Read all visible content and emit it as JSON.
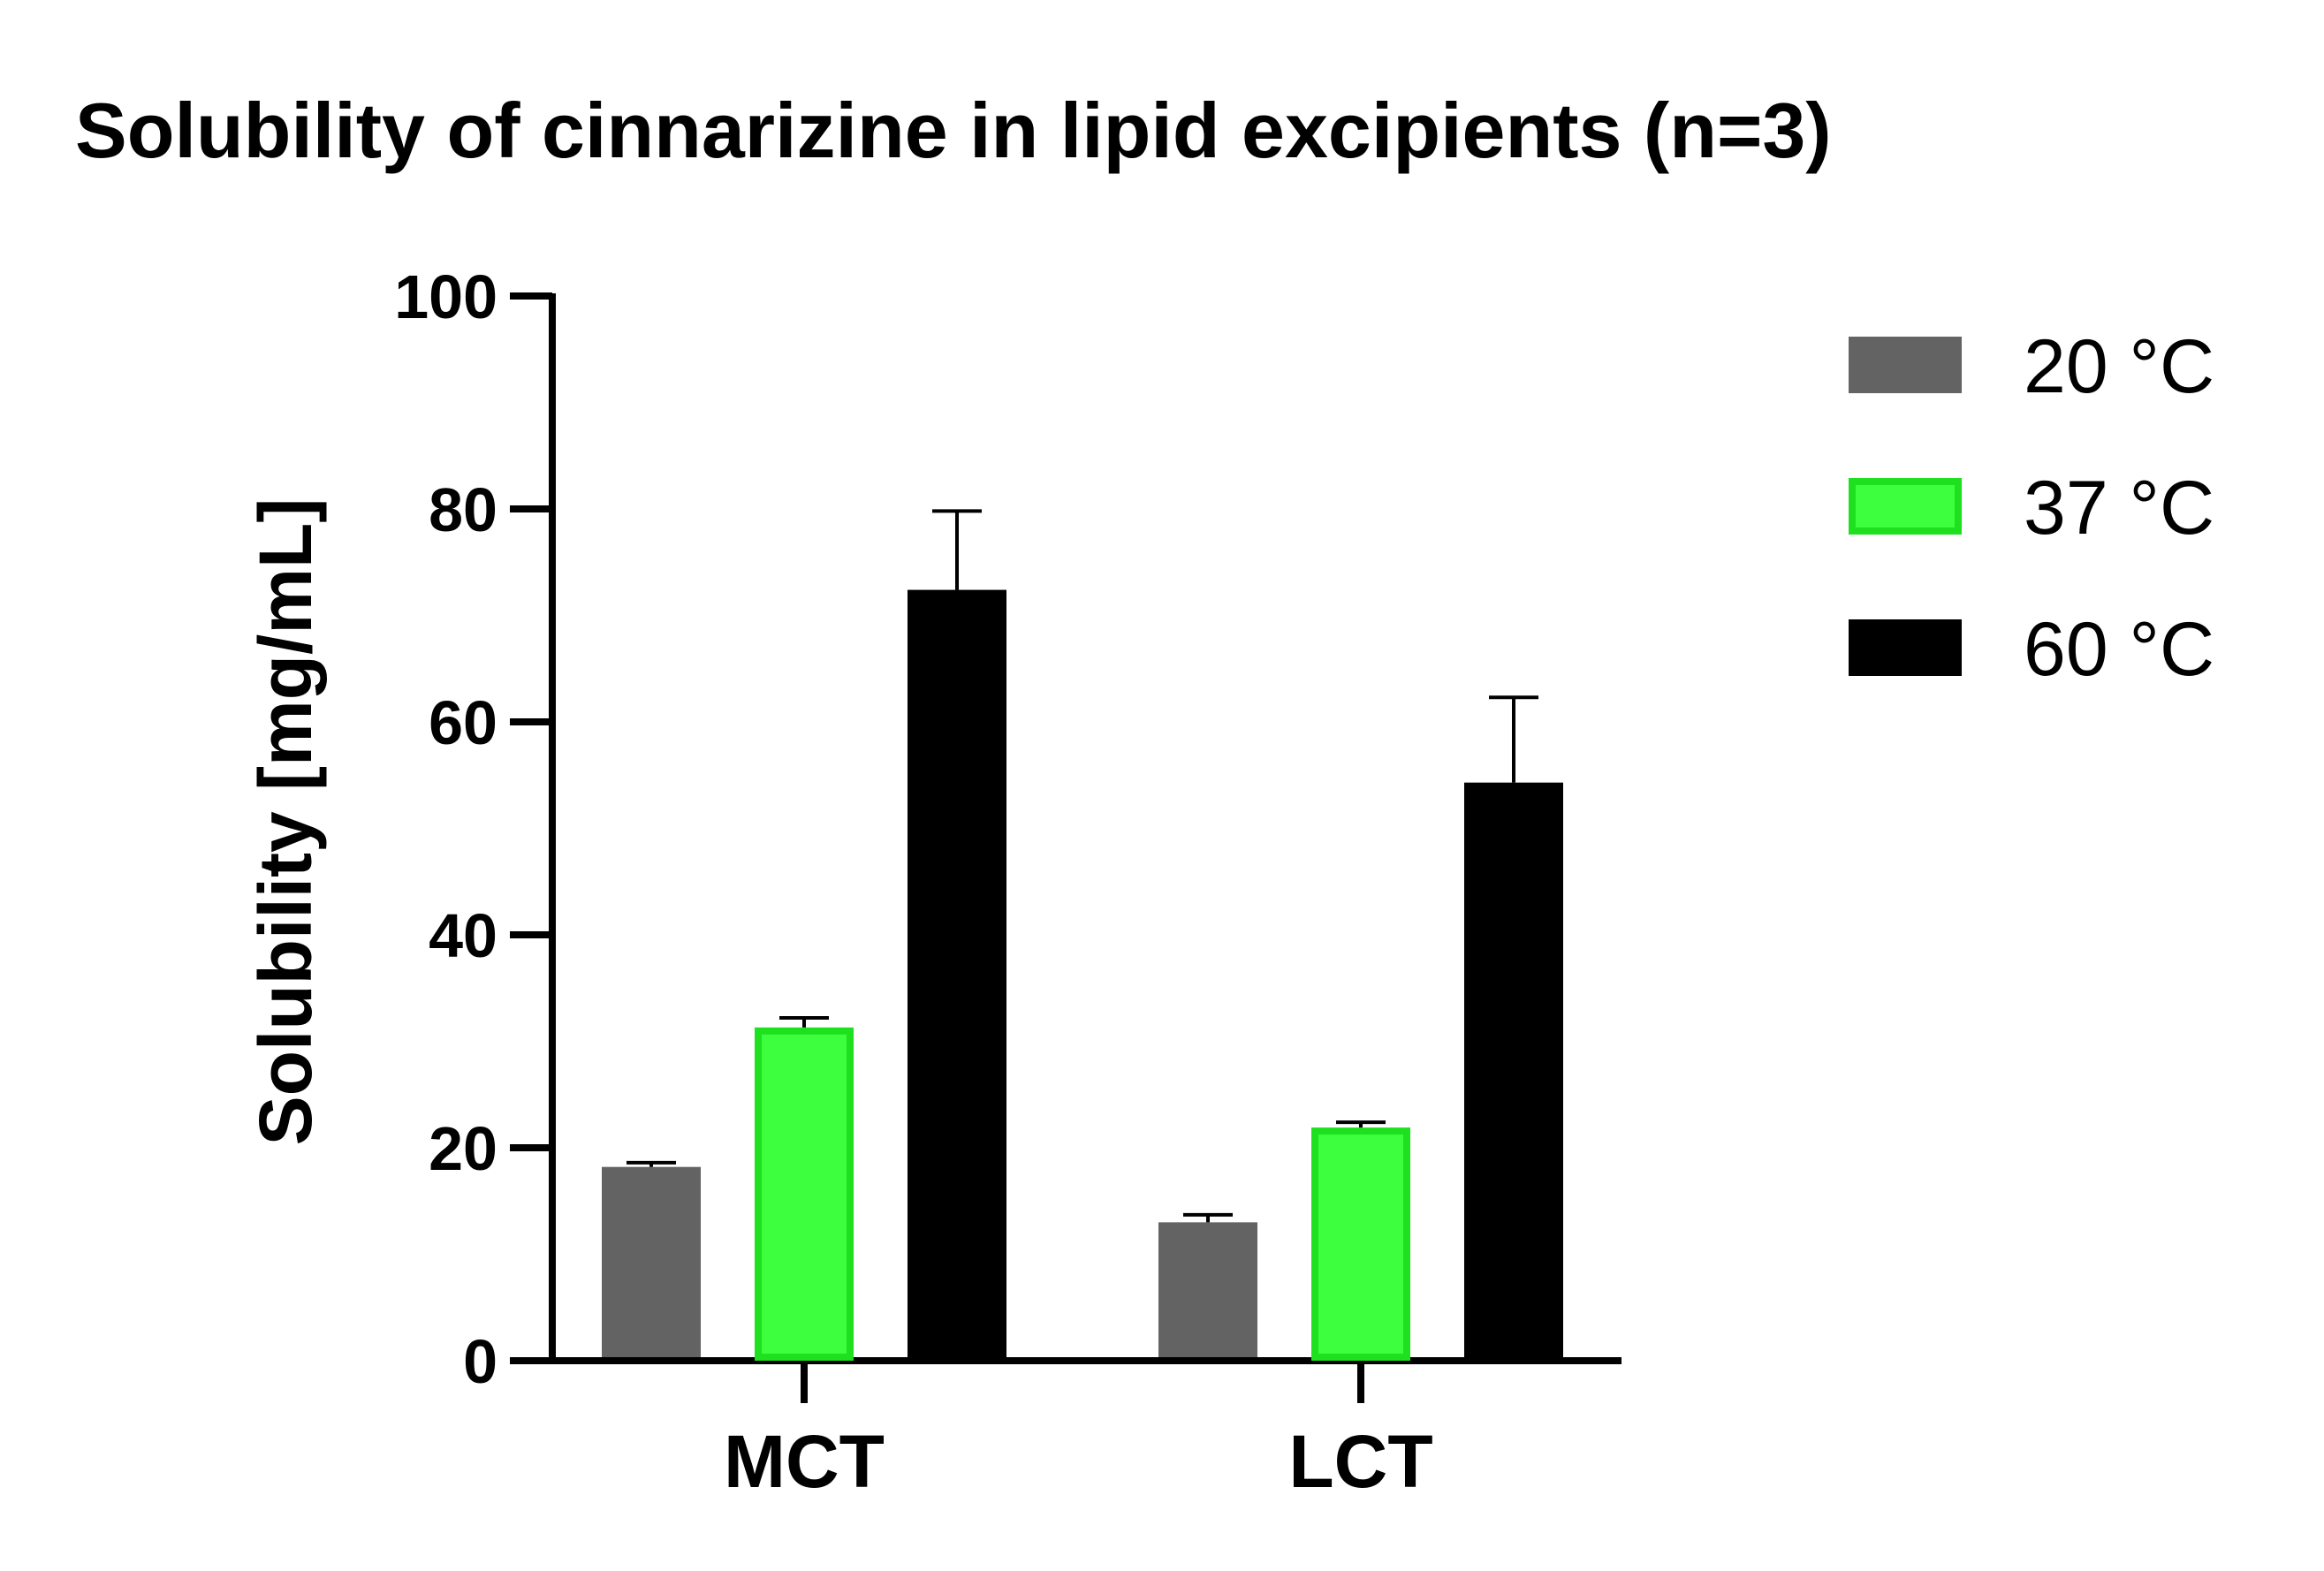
{
  "chart_data": {
    "type": "bar",
    "title": "Solubility of cinnarizine in lipid excipients (n=3)",
    "xlabel": "",
    "ylabel": "Solubility [mg/mL]",
    "ylim": [
      0,
      100
    ],
    "yticks": [
      "0",
      "20",
      "40",
      "60",
      "80",
      "100"
    ],
    "categories": [
      "MCT",
      "LCT"
    ],
    "series": [
      {
        "name": "20 °C",
        "values": [
          18.2,
          13.0
        ],
        "errors": [
          0.4,
          0.7
        ],
        "color": "#636363",
        "stroke": "#636363"
      },
      {
        "name": "37 °C",
        "values": [
          31.3,
          21.9
        ],
        "errors": [
          0.9,
          0.5
        ],
        "color": "#3dff3d",
        "stroke": "#1fe01f"
      },
      {
        "name": "60 °C",
        "values": [
          72.4,
          54.3
        ],
        "errors": [
          7.4,
          8.0
        ],
        "color": "#000000",
        "stroke": "#000000"
      }
    ],
    "error_bars": "upper",
    "grid": false,
    "legend_position": "top-right"
  }
}
